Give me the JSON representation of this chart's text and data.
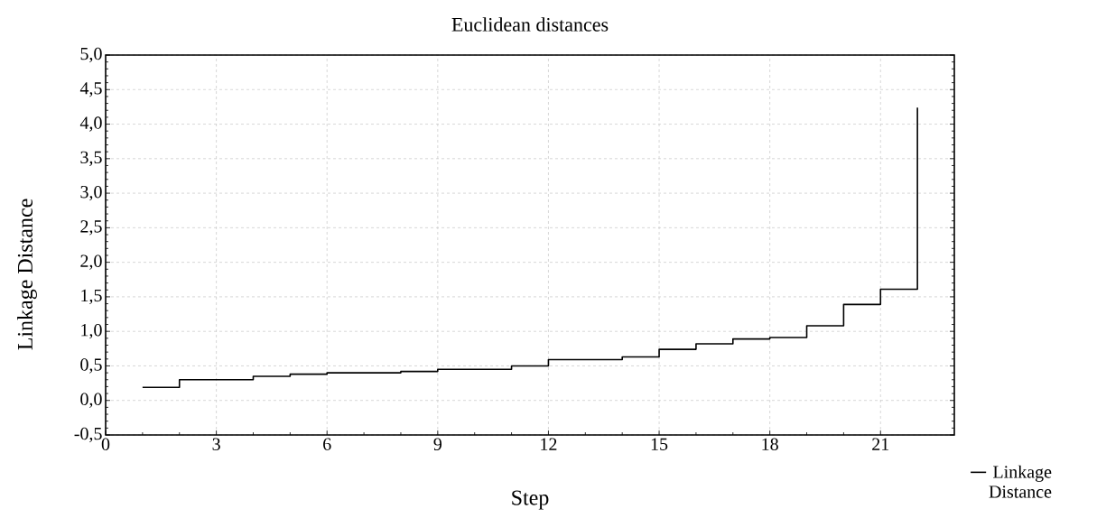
{
  "chart_data": {
    "type": "step",
    "title": "Euclidean distances",
    "xlabel": "Step",
    "ylabel": "Linkage Distance",
    "x": [
      1,
      2,
      3,
      4,
      5,
      6,
      7,
      8,
      9,
      10,
      11,
      12,
      13,
      14,
      15,
      16,
      17,
      18,
      19,
      20,
      21,
      22
    ],
    "series": [
      {
        "name": "Linkage Distance",
        "color": "#000000",
        "values": [
          0.19,
          0.3,
          0.3,
          0.35,
          0.38,
          0.4,
          0.4,
          0.42,
          0.45,
          0.45,
          0.5,
          0.59,
          0.59,
          0.63,
          0.74,
          0.82,
          0.89,
          0.91,
          1.08,
          1.39,
          1.61,
          4.24
        ]
      }
    ],
    "xlim": [
      0,
      23
    ],
    "xticks": [
      0,
      3,
      6,
      9,
      12,
      15,
      18,
      21
    ],
    "ylim": [
      -0.5,
      5.0
    ],
    "yticks": [
      {
        "value": -0.5,
        "label": "-0,5"
      },
      {
        "value": 0,
        "label": "0,0"
      },
      {
        "value": 0.5,
        "label": "0,5"
      },
      {
        "value": 1.0,
        "label": "1,0"
      },
      {
        "value": 1.5,
        "label": "1,5"
      },
      {
        "value": 2.0,
        "label": "2,0"
      },
      {
        "value": 2.5,
        "label": "2,5"
      },
      {
        "value": 3.0,
        "label": "3,0"
      },
      {
        "value": 3.5,
        "label": "3,5"
      },
      {
        "value": 4.0,
        "label": "4,0"
      },
      {
        "value": 4.5,
        "label": "4,5"
      },
      {
        "value": 5.0,
        "label": "5,0"
      }
    ],
    "grid": true,
    "legend": "bottom right",
    "marker": "none",
    "line_style": "solid"
  }
}
